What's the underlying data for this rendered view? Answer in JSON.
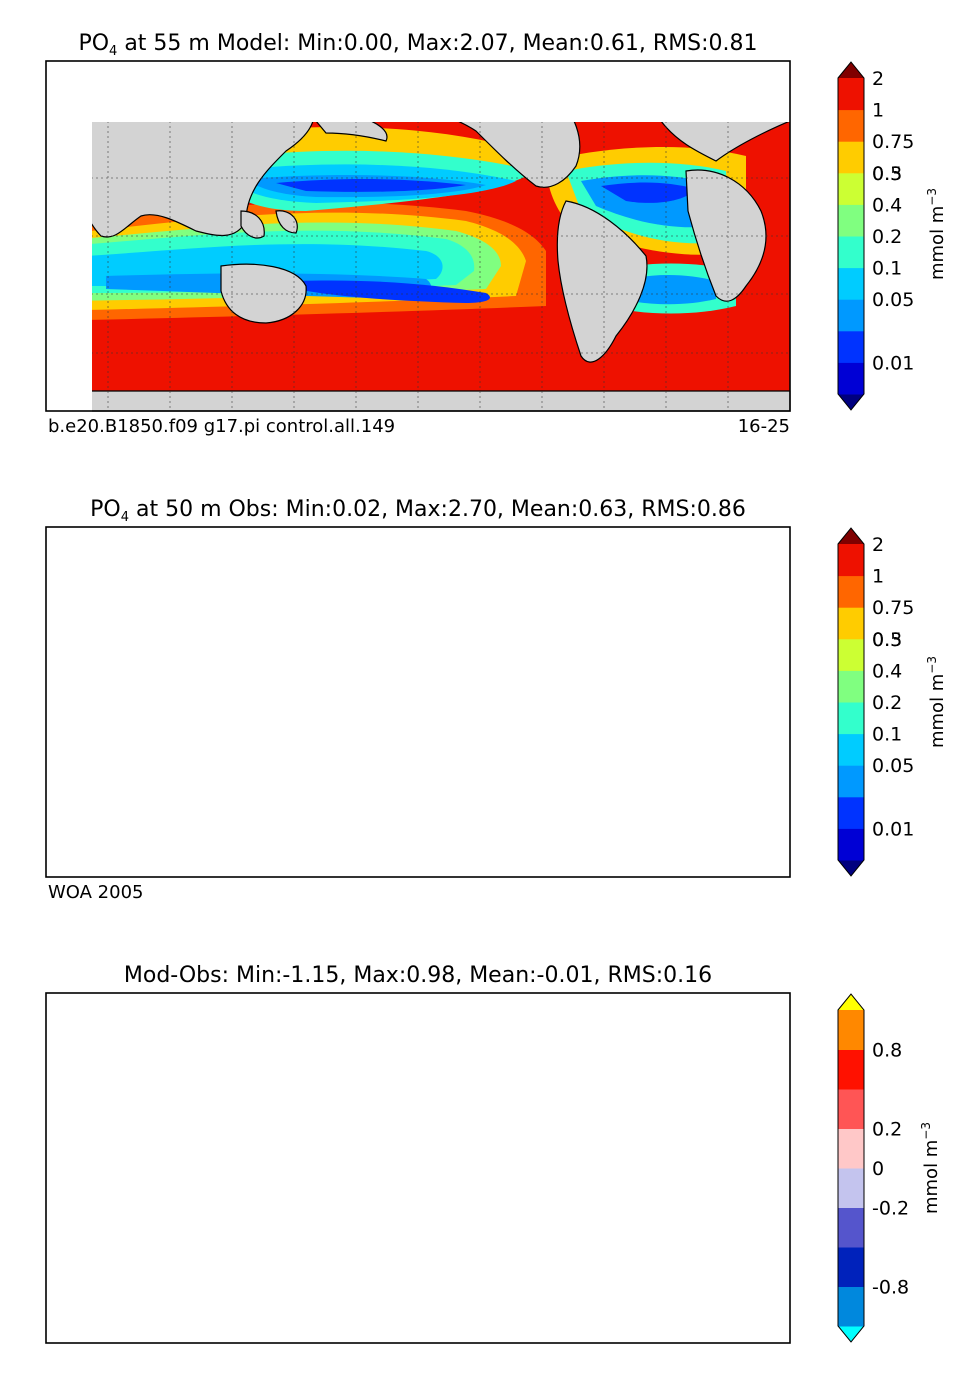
{
  "panels": [
    {
      "title_prefix": "PO",
      "title_sub": "4",
      "title_rest": "  at 55 m Model: Min:0.00, Max:2.07, Mean:0.61, RMS:0.81",
      "footer_left": "b.e20.B1850.f09 g17.pi control.all.149",
      "footer_right": "16-25",
      "colorbar": {
        "colors": [
          "#00007f",
          "#0000d5",
          "#0033ff",
          "#0099ff",
          "#00ccff",
          "#33ffcc",
          "#80ff80",
          "#ccff33",
          "#ffcc00",
          "#ff6600",
          "#ee1100",
          "#7f0000"
        ],
        "labels": [
          "0.01",
          "0.05",
          "0.1",
          "0.2",
          "0.3",
          "0.4",
          "0.5",
          "0.75",
          "1",
          "2"
        ],
        "unit": "mmol m",
        "unit_sup": "−3"
      }
    },
    {
      "title_prefix": "PO",
      "title_sub": "4",
      "title_rest": "  at 50 m Obs: Min:0.02, Max:2.70, Mean:0.63, RMS:0.86",
      "footer_left": "WOA 2005",
      "footer_right": "",
      "colorbar": {
        "colors": [
          "#00007f",
          "#0000d5",
          "#0033ff",
          "#0099ff",
          "#00ccff",
          "#33ffcc",
          "#80ff80",
          "#ccff33",
          "#ffcc00",
          "#ff6600",
          "#ee1100",
          "#7f0000"
        ],
        "labels": [
          "0.01",
          "0.05",
          "0.1",
          "0.2",
          "0.3",
          "0.4",
          "0.5",
          "0.75",
          "1",
          "2"
        ],
        "unit": "mmol m",
        "unit_sup": "−3"
      }
    },
    {
      "title_prefix": "",
      "title_sub": "",
      "title_rest": "Mod-Obs: Min:-1.15, Max:0.98, Mean:-0.01, RMS:0.16",
      "footer_left": "",
      "footer_right": "",
      "colorbar": {
        "colors": [
          "#00ffff",
          "#0088dd",
          "#0022bb",
          "#5555cc",
          "#c4c4ee",
          "#ffc8c8",
          "#ff5555",
          "#ff1100",
          "#ff8800",
          "#ffff00"
        ],
        "labels": [
          "-0.8",
          "-0.2",
          "0",
          "0.2",
          "0.8"
        ],
        "unit": "mmol m",
        "unit_sup": "−3"
      }
    }
  ],
  "chart_data": [
    {
      "type": "heatmap",
      "title": "PO4 at 55 m Model: Min:0.00, Max:2.07, Mean:0.61, RMS:0.81",
      "variable": "PO4",
      "depth_m": 55,
      "min": 0.0,
      "max": 2.07,
      "mean": 0.61,
      "rms": 0.81,
      "colorbar_levels": [
        0.01,
        0.05,
        0.1,
        0.2,
        0.3,
        0.4,
        0.5,
        0.75,
        1,
        2
      ],
      "colorbar_extends": "both",
      "colorbar_units": "mmol m-3",
      "grid": "dotted lat/lon",
      "map": "global, land gray"
    },
    {
      "type": "heatmap",
      "title": "PO4 at 50 m Obs: Min:0.02, Max:2.70, Mean:0.63, RMS:0.86",
      "variable": "PO4",
      "depth_m": 50,
      "min": 0.02,
      "max": 2.7,
      "mean": 0.63,
      "rms": 0.86,
      "colorbar_levels": [
        0.01,
        0.05,
        0.1,
        0.2,
        0.3,
        0.4,
        0.5,
        0.75,
        1,
        2
      ],
      "colorbar_extends": "both",
      "colorbar_units": "mmol m-3",
      "grid": "dotted lat/lon",
      "map": "global, land gray"
    },
    {
      "type": "heatmap",
      "title": "Mod-Obs: Min:-1.15, Max:0.98, Mean:-0.01, RMS:0.16",
      "min": -1.15,
      "max": 0.98,
      "mean": -0.01,
      "rms": 0.16,
      "colorbar_levels": [
        -0.8,
        -0.2,
        0,
        0.2,
        0.8
      ],
      "colorbar_extends": "both",
      "colorbar_units": "mmol m-3",
      "grid": "dotted lat/lon",
      "map": "global, land gray"
    }
  ]
}
